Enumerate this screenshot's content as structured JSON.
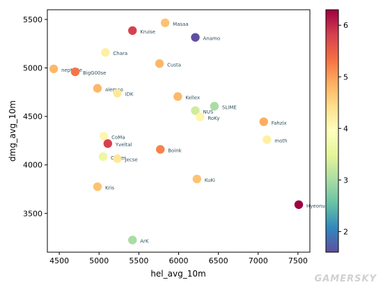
{
  "chart_data": {
    "type": "scatter",
    "xlabel": "hel_avg_10m",
    "ylabel": "dmg_avg_10m",
    "xlim": [
      4350,
      7650
    ],
    "ylim": [
      3100,
      5600
    ],
    "xticks": [
      4500,
      5000,
      5500,
      6000,
      6500,
      7000,
      7500
    ],
    "yticks": [
      3500,
      4000,
      4500,
      5000,
      5500
    ],
    "colorbar": {
      "colormap": "Spectral",
      "range": [
        1.6,
        6.3
      ],
      "ticks": [
        2,
        3,
        4,
        5,
        6
      ],
      "stops": [
        "#5e4fa2",
        "#3288bd",
        "#66c2a5",
        "#abdda4",
        "#e6f598",
        "#ffffbf",
        "#fee08b",
        "#fdae61",
        "#f46d43",
        "#d53e4f",
        "#9e0142"
      ]
    },
    "grid": false,
    "points": [
      {
        "label": "Masaa",
        "x": 5830,
        "y": 5465,
        "c": 4.7
      },
      {
        "label": "Kruise",
        "x": 5420,
        "y": 5385,
        "c": 5.8
      },
      {
        "label": "Anamo",
        "x": 6210,
        "y": 5315,
        "c": 1.6
      },
      {
        "label": "Chara",
        "x": 5080,
        "y": 5160,
        "c": 4.2
      },
      {
        "label": "Custa",
        "x": 5760,
        "y": 5045,
        "c": 4.8
      },
      {
        "label": "neptuNe",
        "x": 4430,
        "y": 4990,
        "c": 4.8
      },
      {
        "label": "BigG00se",
        "x": 4700,
        "y": 4960,
        "c": 5.3
      },
      {
        "label": "alemao",
        "x": 4980,
        "y": 4790,
        "c": 4.8
      },
      {
        "label": "iDK",
        "x": 5230,
        "y": 4740,
        "c": 4.3
      },
      {
        "label": "Kellex",
        "x": 5990,
        "y": 4705,
        "c": 4.8
      },
      {
        "label": "SLIME",
        "x": 6450,
        "y": 4605,
        "c": 3.0
      },
      {
        "label": "NUS",
        "x": 6210,
        "y": 4560,
        "c": 3.3
      },
      {
        "label": "RoKy",
        "x": 6270,
        "y": 4495,
        "c": 4.1
      },
      {
        "label": "Fahzix",
        "x": 7070,
        "y": 4445,
        "c": 4.9
      },
      {
        "label": "moth",
        "x": 7110,
        "y": 4260,
        "c": 4.2
      },
      {
        "label": "CoMa",
        "x": 5060,
        "y": 4295,
        "c": 4.1
      },
      {
        "label": "Yveltal",
        "x": 5110,
        "y": 4220,
        "c": 5.8
      },
      {
        "label": "Boink",
        "x": 5770,
        "y": 4160,
        "c": 5.2
      },
      {
        "label": "Closer",
        "x": 5050,
        "y": 4085,
        "c": 3.6
      },
      {
        "label": "Jecse",
        "x": 5230,
        "y": 4065,
        "c": 4.3
      },
      {
        "label": "KuKi",
        "x": 6230,
        "y": 3855,
        "c": 4.7
      },
      {
        "label": "Kris",
        "x": 4980,
        "y": 3775,
        "c": 4.7
      },
      {
        "label": "Hyeonu",
        "x": 7510,
        "y": 3590,
        "c": 6.3
      },
      {
        "label": "ArK",
        "x": 5420,
        "y": 3225,
        "c": 3.0
      }
    ]
  },
  "watermark": "GAMERSKY"
}
